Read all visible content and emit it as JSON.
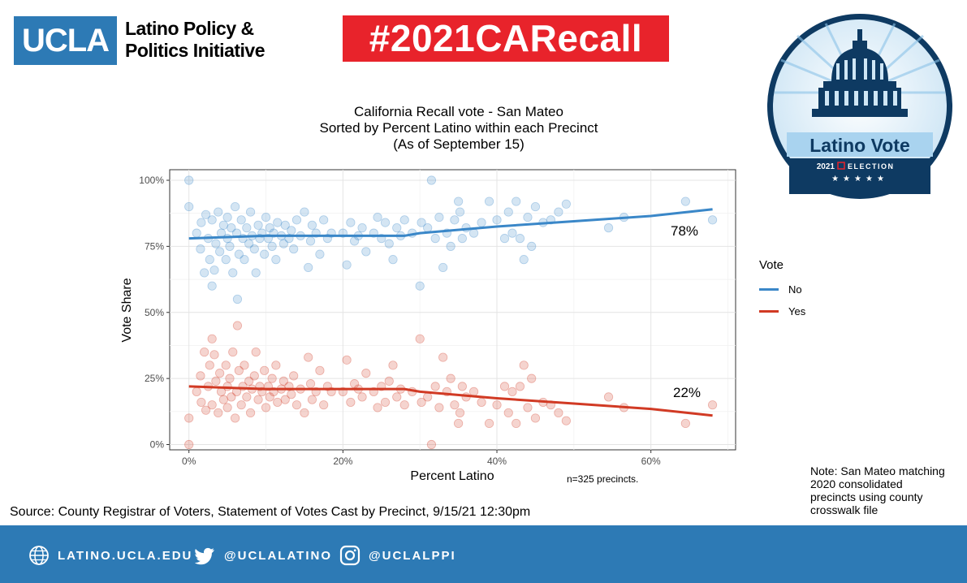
{
  "header": {
    "logo_text": "UCLA",
    "org_line1": "Latino Policy &",
    "org_line2": "Politics Initiative",
    "hashtag": "#2021CARecall"
  },
  "seal": {
    "title": "Latino Vote",
    "year": "2021",
    "election": "ELECTION"
  },
  "chart_data": {
    "type": "scatter",
    "title": "California Recall vote - San Mateo",
    "subtitle1": "Sorted by Percent Latino within each Precinct",
    "subtitle2": "(As of September 15)",
    "xlabel": "Percent Latino",
    "ylabel": "Vote Share",
    "xlim": [
      -2.5,
      71
    ],
    "ylim": [
      -2,
      104
    ],
    "x_ticks": [
      0,
      20,
      40,
      60
    ],
    "x_tick_labels": [
      "0%",
      "20%",
      "40%",
      "60%"
    ],
    "y_ticks": [
      0,
      25,
      50,
      75,
      100
    ],
    "y_tick_labels": [
      "0%",
      "25%",
      "50%",
      "75%",
      "100%"
    ],
    "grid": true,
    "legend_title": "Vote",
    "legend_position": "right",
    "series": [
      {
        "name": "No",
        "color": "#3a87c8",
        "trend": [
          [
            0,
            78
          ],
          [
            10,
            79
          ],
          [
            20,
            79
          ],
          [
            28,
            79
          ],
          [
            30,
            80
          ],
          [
            40,
            82.5
          ],
          [
            50,
            84.5
          ],
          [
            60,
            86.5
          ],
          [
            68,
            89
          ]
        ],
        "end_label": "78%",
        "points": [
          [
            0,
            100
          ],
          [
            0,
            90
          ],
          [
            1,
            80
          ],
          [
            1.5,
            74
          ],
          [
            1.6,
            84
          ],
          [
            2,
            65
          ],
          [
            2.2,
            87
          ],
          [
            2.5,
            78
          ],
          [
            2.7,
            70
          ],
          [
            3,
            60
          ],
          [
            3,
            85
          ],
          [
            3.3,
            66
          ],
          [
            3.5,
            76
          ],
          [
            3.8,
            88
          ],
          [
            4,
            73
          ],
          [
            4.2,
            80
          ],
          [
            4.5,
            83
          ],
          [
            4.8,
            70
          ],
          [
            5,
            78
          ],
          [
            5,
            86
          ],
          [
            5.3,
            75
          ],
          [
            5.5,
            82
          ],
          [
            5.7,
            65
          ],
          [
            6,
            90
          ],
          [
            6.2,
            80
          ],
          [
            6.3,
            55
          ],
          [
            6.5,
            72
          ],
          [
            6.8,
            85
          ],
          [
            7,
            78
          ],
          [
            7.2,
            70
          ],
          [
            7.5,
            82
          ],
          [
            7.8,
            76
          ],
          [
            8,
            88
          ],
          [
            8.2,
            79
          ],
          [
            8.5,
            74
          ],
          [
            8.7,
            65
          ],
          [
            9,
            83
          ],
          [
            9.2,
            78
          ],
          [
            9.5,
            80
          ],
          [
            9.8,
            72
          ],
          [
            10,
            86
          ],
          [
            10.3,
            78
          ],
          [
            10.5,
            82
          ],
          [
            10.8,
            75
          ],
          [
            11,
            80
          ],
          [
            11.3,
            70
          ],
          [
            11.5,
            84
          ],
          [
            12,
            79
          ],
          [
            12.3,
            76
          ],
          [
            12.5,
            83
          ],
          [
            13,
            78
          ],
          [
            13.3,
            81
          ],
          [
            13.6,
            74
          ],
          [
            14,
            85
          ],
          [
            14.5,
            79
          ],
          [
            15,
            88
          ],
          [
            15.5,
            67
          ],
          [
            15.8,
            77
          ],
          [
            16,
            83
          ],
          [
            16.5,
            80
          ],
          [
            17,
            72
          ],
          [
            17.5,
            85
          ],
          [
            18,
            78
          ],
          [
            18.5,
            80
          ],
          [
            20,
            80
          ],
          [
            20.5,
            68
          ],
          [
            21,
            84
          ],
          [
            21.5,
            77
          ],
          [
            22,
            79
          ],
          [
            22.5,
            82
          ],
          [
            23,
            73
          ],
          [
            24,
            80
          ],
          [
            24.5,
            86
          ],
          [
            25,
            78
          ],
          [
            25.5,
            84
          ],
          [
            26,
            76
          ],
          [
            26.5,
            70
          ],
          [
            27,
            82
          ],
          [
            27.5,
            79
          ],
          [
            28,
            85
          ],
          [
            29,
            80
          ],
          [
            30,
            60
          ],
          [
            30.2,
            84
          ],
          [
            31,
            82
          ],
          [
            31.5,
            100
          ],
          [
            32,
            78
          ],
          [
            32.5,
            86
          ],
          [
            33,
            67
          ],
          [
            33.5,
            80
          ],
          [
            34,
            75
          ],
          [
            34.5,
            85
          ],
          [
            35,
            92
          ],
          [
            35.2,
            88
          ],
          [
            35.5,
            78
          ],
          [
            36,
            82
          ],
          [
            37,
            80
          ],
          [
            38,
            84
          ],
          [
            39,
            92
          ],
          [
            40,
            85
          ],
          [
            41,
            78
          ],
          [
            41.5,
            88
          ],
          [
            42,
            80
          ],
          [
            42.5,
            92
          ],
          [
            43,
            78
          ],
          [
            43.5,
            70
          ],
          [
            44,
            86
          ],
          [
            44.5,
            75
          ],
          [
            45,
            90
          ],
          [
            46,
            84
          ],
          [
            47,
            85
          ],
          [
            48,
            88
          ],
          [
            49,
            91
          ],
          [
            54.5,
            82
          ],
          [
            56.5,
            86
          ],
          [
            64.5,
            92
          ],
          [
            68,
            85
          ]
        ]
      },
      {
        "name": "Yes",
        "color": "#d13a24",
        "trend": [
          [
            0,
            22
          ],
          [
            10,
            21
          ],
          [
            20,
            21
          ],
          [
            28,
            21
          ],
          [
            30,
            20
          ],
          [
            40,
            17.5
          ],
          [
            50,
            15.5
          ],
          [
            60,
            13.5
          ],
          [
            68,
            11
          ]
        ],
        "end_label": "22%",
        "points": [
          [
            0,
            0
          ],
          [
            0,
            10
          ],
          [
            1,
            20
          ],
          [
            1.5,
            26
          ],
          [
            1.6,
            16
          ],
          [
            2,
            35
          ],
          [
            2.2,
            13
          ],
          [
            2.5,
            22
          ],
          [
            2.7,
            30
          ],
          [
            3,
            40
          ],
          [
            3,
            15
          ],
          [
            3.3,
            34
          ],
          [
            3.5,
            24
          ],
          [
            3.8,
            12
          ],
          [
            4,
            27
          ],
          [
            4.2,
            20
          ],
          [
            4.5,
            17
          ],
          [
            4.8,
            30
          ],
          [
            5,
            22
          ],
          [
            5,
            14
          ],
          [
            5.3,
            25
          ],
          [
            5.5,
            18
          ],
          [
            5.7,
            35
          ],
          [
            6,
            10
          ],
          [
            6.2,
            20
          ],
          [
            6.3,
            45
          ],
          [
            6.5,
            28
          ],
          [
            6.8,
            15
          ],
          [
            7,
            22
          ],
          [
            7.2,
            30
          ],
          [
            7.5,
            18
          ],
          [
            7.8,
            24
          ],
          [
            8,
            12
          ],
          [
            8.2,
            21
          ],
          [
            8.5,
            26
          ],
          [
            8.7,
            35
          ],
          [
            9,
            17
          ],
          [
            9.2,
            22
          ],
          [
            9.5,
            20
          ],
          [
            9.8,
            28
          ],
          [
            10,
            14
          ],
          [
            10.3,
            22
          ],
          [
            10.5,
            18
          ],
          [
            10.8,
            25
          ],
          [
            11,
            20
          ],
          [
            11.3,
            30
          ],
          [
            11.5,
            16
          ],
          [
            12,
            21
          ],
          [
            12.3,
            24
          ],
          [
            12.5,
            17
          ],
          [
            13,
            22
          ],
          [
            13.3,
            19
          ],
          [
            13.6,
            26
          ],
          [
            14,
            15
          ],
          [
            14.5,
            21
          ],
          [
            15,
            12
          ],
          [
            15.5,
            33
          ],
          [
            15.8,
            23
          ],
          [
            16,
            17
          ],
          [
            16.5,
            20
          ],
          [
            17,
            28
          ],
          [
            17.5,
            15
          ],
          [
            18,
            22
          ],
          [
            18.5,
            20
          ],
          [
            20,
            20
          ],
          [
            20.5,
            32
          ],
          [
            21,
            16
          ],
          [
            21.5,
            23
          ],
          [
            22,
            21
          ],
          [
            22.5,
            18
          ],
          [
            23,
            27
          ],
          [
            24,
            20
          ],
          [
            24.5,
            14
          ],
          [
            25,
            22
          ],
          [
            25.5,
            16
          ],
          [
            26,
            24
          ],
          [
            26.5,
            30
          ],
          [
            27,
            18
          ],
          [
            27.5,
            21
          ],
          [
            28,
            15
          ],
          [
            29,
            20
          ],
          [
            30,
            40
          ],
          [
            30.2,
            16
          ],
          [
            31,
            18
          ],
          [
            31.5,
            0
          ],
          [
            32,
            22
          ],
          [
            32.5,
            14
          ],
          [
            33,
            33
          ],
          [
            33.5,
            20
          ],
          [
            34,
            25
          ],
          [
            34.5,
            15
          ],
          [
            35,
            8
          ],
          [
            35.2,
            12
          ],
          [
            35.5,
            22
          ],
          [
            36,
            18
          ],
          [
            37,
            20
          ],
          [
            38,
            16
          ],
          [
            39,
            8
          ],
          [
            40,
            15
          ],
          [
            41,
            22
          ],
          [
            41.5,
            12
          ],
          [
            42,
            20
          ],
          [
            42.5,
            8
          ],
          [
            43,
            22
          ],
          [
            43.5,
            30
          ],
          [
            44,
            14
          ],
          [
            44.5,
            25
          ],
          [
            45,
            10
          ],
          [
            46,
            16
          ],
          [
            47,
            15
          ],
          [
            48,
            12
          ],
          [
            49,
            9
          ],
          [
            54.5,
            18
          ],
          [
            56.5,
            14
          ],
          [
            64.5,
            8
          ],
          [
            68,
            15
          ]
        ]
      }
    ]
  },
  "notes": {
    "precincts": "n=325 precincts.",
    "note_line1": "Note: San Mateo matching",
    "note_line2": "2020 consolidated",
    "note_line3": "precincts using county",
    "note_line4": "crosswalk file",
    "source": "Source: County Registrar of Voters, Statement of Votes Cast by Precinct,  9/15/21 12:30pm"
  },
  "footer": {
    "website": "LATINO.UCLA.EDU",
    "twitter": "@UCLALATINO",
    "instagram": "@UCLALPPI"
  },
  "colors": {
    "ucla_blue": "#2d7ab5",
    "hashtag_red": "#e8232b",
    "no_blue": "#3a87c8",
    "yes_red": "#d13a24"
  }
}
